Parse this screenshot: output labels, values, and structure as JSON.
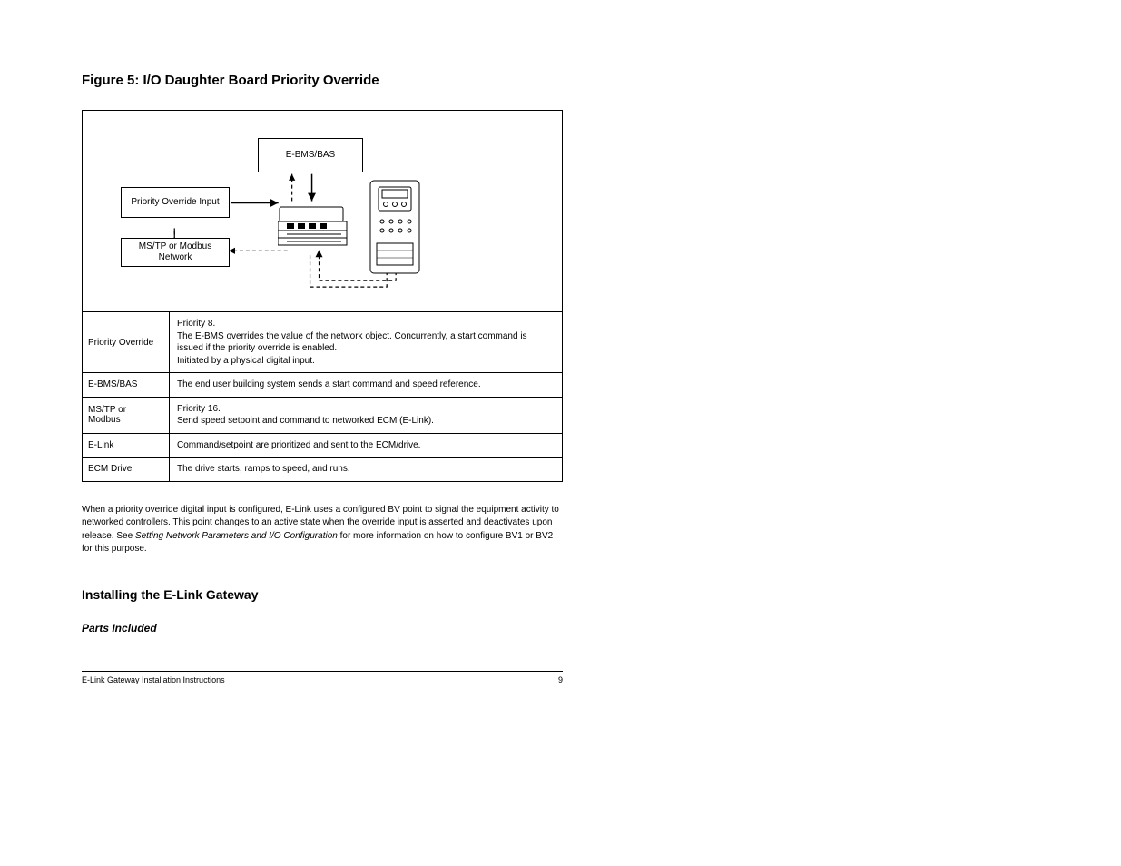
{
  "heading": "Figure 5: I/O Daughter Board Priority Override",
  "diagram": {
    "box_top": "E-BMS/BAS",
    "box_mid": "Priority Override Input",
    "box_low": "MS/TP or Modbus Network",
    "dev_left_alt": "chiller-unit",
    "dev_right_alt": "control-panel"
  },
  "rows": [
    {
      "l": "Priority Override",
      "r": "Priority 8.<br>The E-BMS overrides the value of the network object. Concurrently, a start command is issued if the priority override is enabled.<br>Initiated by a physical digital input."
    },
    {
      "l": "E-BMS/BAS",
      "r": "The end user building system sends a start command and speed reference."
    },
    {
      "l": "MS/TP or<br>Modbus",
      "r": "Priority 16.<br>Send speed setpoint and command to networked ECM (E-Link)."
    },
    {
      "l": "E-Link",
      "r": "Command/setpoint are prioritized and sent to the ECM/drive."
    },
    {
      "l": "ECM Drive",
      "r": "The drive starts, ramps to speed, and runs."
    }
  ],
  "para": "When a priority override digital input is configured, E-Link uses a configured BV point to signal the equipment activity to networked controllers. This point changes to an active state when the override input is asserted and deactivates upon release. See <i>Setting Network Parameters and I/O Configuration</i> for more information on how to configure BV1 or BV2 for this purpose.",
  "sec": "Installing the E-Link Gateway",
  "sub": "Parts Included",
  "footer_l": "E-Link Gateway Installation Instructions",
  "footer_r": "9"
}
